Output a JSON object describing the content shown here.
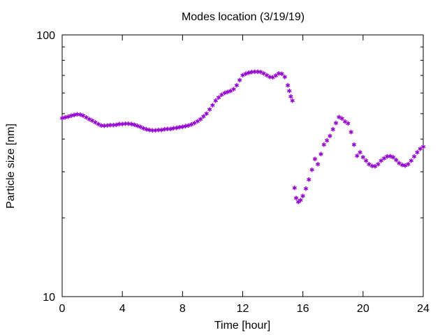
{
  "chart_data": {
    "type": "scatter",
    "title": "Modes location (3/19/19)",
    "xlabel": "Time [hour]",
    "ylabel": "Particle size [nm]",
    "xlim": [
      0,
      24
    ],
    "ylim": [
      10,
      100
    ],
    "yscale": "log",
    "xticks": [
      "0",
      "4",
      "8",
      "12",
      "16",
      "20",
      "24"
    ],
    "yticks": [
      "10",
      "100"
    ],
    "grid": false,
    "marker": "*",
    "color": "#9400D3",
    "series": [
      {
        "points": [
          [
            0.0,
            48.0
          ],
          [
            0.2,
            48.3
          ],
          [
            0.4,
            48.6
          ],
          [
            0.6,
            49.0
          ],
          [
            0.8,
            49.3
          ],
          [
            1.0,
            49.6
          ],
          [
            1.2,
            49.5
          ],
          [
            1.4,
            49.0
          ],
          [
            1.6,
            48.3
          ],
          [
            1.8,
            47.6
          ],
          [
            2.0,
            47.0
          ],
          [
            2.2,
            46.3
          ],
          [
            2.4,
            45.5
          ],
          [
            2.6,
            45.0
          ],
          [
            2.8,
            44.9
          ],
          [
            3.0,
            45.0
          ],
          [
            3.2,
            45.1
          ],
          [
            3.4,
            45.2
          ],
          [
            3.6,
            45.3
          ],
          [
            3.8,
            45.5
          ],
          [
            4.0,
            45.6
          ],
          [
            4.2,
            45.7
          ],
          [
            4.4,
            45.7
          ],
          [
            4.6,
            45.6
          ],
          [
            4.8,
            45.3
          ],
          [
            5.0,
            44.9
          ],
          [
            5.2,
            44.4
          ],
          [
            5.4,
            43.9
          ],
          [
            5.6,
            43.5
          ],
          [
            5.8,
            43.2
          ],
          [
            6.0,
            43.1
          ],
          [
            6.2,
            43.1
          ],
          [
            6.4,
            43.2
          ],
          [
            6.6,
            43.3
          ],
          [
            6.8,
            43.5
          ],
          [
            7.0,
            43.6
          ],
          [
            7.2,
            43.7
          ],
          [
            7.4,
            43.9
          ],
          [
            7.6,
            44.1
          ],
          [
            7.8,
            44.3
          ],
          [
            8.0,
            44.5
          ],
          [
            8.2,
            44.8
          ],
          [
            8.4,
            45.0
          ],
          [
            8.6,
            45.4
          ],
          [
            8.8,
            46.0
          ],
          [
            9.0,
            46.7
          ],
          [
            9.2,
            47.6
          ],
          [
            9.4,
            48.7
          ],
          [
            9.6,
            50.0
          ],
          [
            9.8,
            51.8
          ],
          [
            10.0,
            53.8
          ],
          [
            10.2,
            55.9
          ],
          [
            10.4,
            57.6
          ],
          [
            10.6,
            59.0
          ],
          [
            10.8,
            59.9
          ],
          [
            11.0,
            60.5
          ],
          [
            11.2,
            61.0
          ],
          [
            11.4,
            62.0
          ],
          [
            11.6,
            64.0
          ],
          [
            11.8,
            67.0
          ],
          [
            12.0,
            70.0
          ],
          [
            12.2,
            71.0
          ],
          [
            12.4,
            71.6
          ],
          [
            12.6,
            72.0
          ],
          [
            12.8,
            72.2
          ],
          [
            13.0,
            72.2
          ],
          [
            13.2,
            72.0
          ],
          [
            13.4,
            71.2
          ],
          [
            13.6,
            70.0
          ],
          [
            13.8,
            69.0
          ],
          [
            14.0,
            68.8
          ],
          [
            14.2,
            69.8
          ],
          [
            14.4,
            71.2
          ],
          [
            14.6,
            71.0
          ],
          [
            14.8,
            69.0
          ],
          [
            15.0,
            64.0
          ],
          [
            15.1,
            61.0
          ],
          [
            15.2,
            58.0
          ],
          [
            15.3,
            56.0
          ],
          [
            15.45,
            26.0
          ],
          [
            15.55,
            23.8
          ],
          [
            15.7,
            23.0
          ],
          [
            15.85,
            23.3
          ],
          [
            16.0,
            24.2
          ],
          [
            16.2,
            25.8
          ],
          [
            16.4,
            28.0
          ],
          [
            16.6,
            30.5
          ],
          [
            16.8,
            33.5
          ],
          [
            17.0,
            32.0
          ],
          [
            17.2,
            35.0
          ],
          [
            17.4,
            38.0
          ],
          [
            17.6,
            39.5
          ],
          [
            17.8,
            41.0
          ],
          [
            18.0,
            43.5
          ],
          [
            18.2,
            46.0
          ],
          [
            18.4,
            48.5
          ],
          [
            18.6,
            47.8
          ],
          [
            18.8,
            46.5
          ],
          [
            19.0,
            45.8
          ],
          [
            19.2,
            42.5
          ],
          [
            19.4,
            38.0
          ],
          [
            19.6,
            34.5
          ],
          [
            19.8,
            35.5
          ],
          [
            20.0,
            34.0
          ],
          [
            20.2,
            33.0
          ],
          [
            20.4,
            32.0
          ],
          [
            20.6,
            31.5
          ],
          [
            20.8,
            31.4
          ],
          [
            21.0,
            32.0
          ],
          [
            21.2,
            33.0
          ],
          [
            21.4,
            33.7
          ],
          [
            21.6,
            34.2
          ],
          [
            21.8,
            34.4
          ],
          [
            22.0,
            34.0
          ],
          [
            22.2,
            33.2
          ],
          [
            22.4,
            32.3
          ],
          [
            22.6,
            31.8
          ],
          [
            22.8,
            31.6
          ],
          [
            23.0,
            32.0
          ],
          [
            23.2,
            33.0
          ],
          [
            23.4,
            34.2
          ],
          [
            23.6,
            35.5
          ],
          [
            23.8,
            36.6
          ],
          [
            24.0,
            37.3
          ]
        ]
      }
    ]
  }
}
